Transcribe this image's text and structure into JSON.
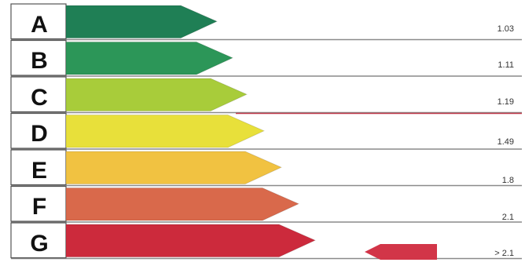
{
  "energy_label": {
    "classes": [
      {
        "letter": "A",
        "value": "1.03",
        "color": "#1f7f55"
      },
      {
        "letter": "B",
        "value": "1.11",
        "color": "#2c9658"
      },
      {
        "letter": "C",
        "value": "1.19",
        "color": "#a8cc3a"
      },
      {
        "letter": "D",
        "value": "1.49",
        "color": "#e8e03a"
      },
      {
        "letter": "E",
        "value": "1.8",
        "color": "#f1c241"
      },
      {
        "letter": "F",
        "value": "2.1",
        "color": "#d9694b"
      },
      {
        "letter": "G",
        "value": "> 2.1",
        "color": "#cc2a3c"
      }
    ],
    "indicator": {
      "class": "G",
      "color": "#d23548"
    },
    "divider_color": "#8a8a8a",
    "highlight_line_color": "#c0394a"
  }
}
